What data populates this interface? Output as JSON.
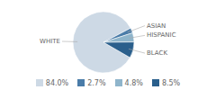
{
  "chart_data": {
    "type": "pie",
    "categories": [
      "WHITE",
      "ASIAN",
      "HISPANIC",
      "BLACK"
    ],
    "values": [
      84.0,
      2.7,
      4.8,
      8.5
    ],
    "value_labels": [
      "84.0%",
      "2.7%",
      "4.8%",
      "8.5%"
    ],
    "colors": [
      "#cdd9e5",
      "#4a7ca8",
      "#8fb5cb",
      "#2a5f8c"
    ],
    "legend": "bottom"
  }
}
